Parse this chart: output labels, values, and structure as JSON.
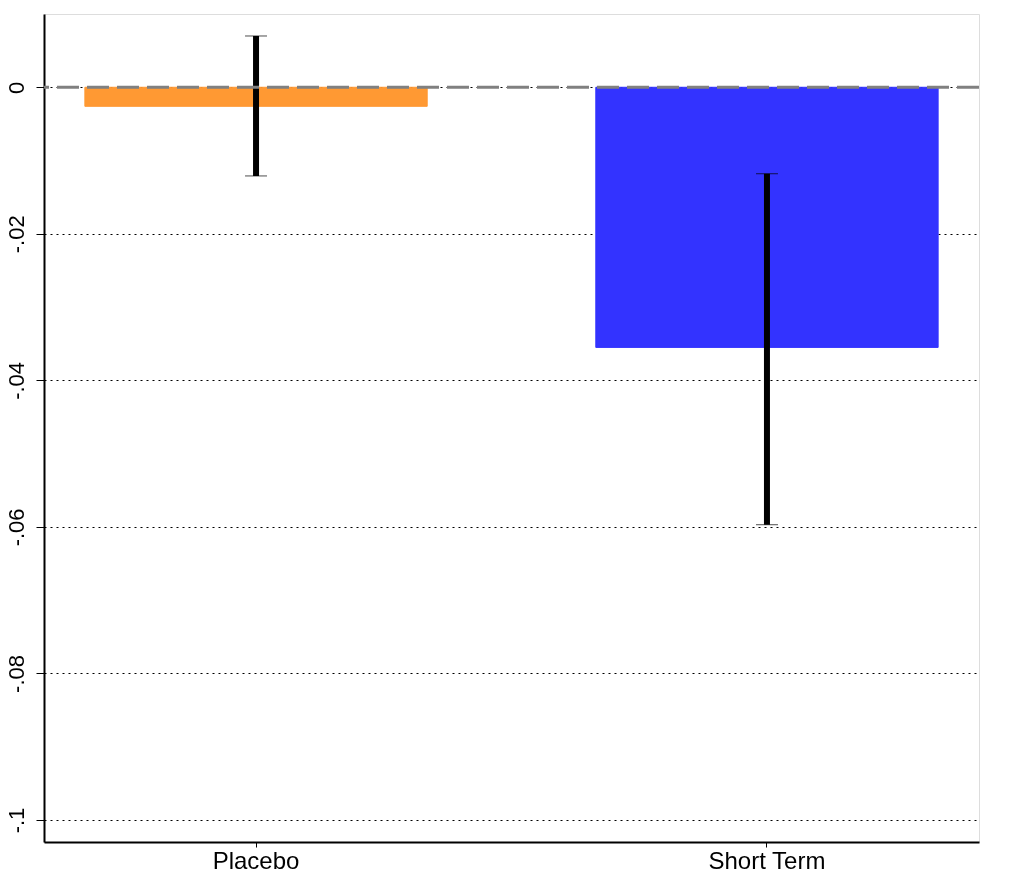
{
  "chart_data": {
    "type": "bar",
    "categories": [
      "Placebo",
      "Short Term"
    ],
    "values": [
      -0.0026,
      -0.0355
    ],
    "colors": [
      "#ff9933",
      "#3333ff"
    ],
    "errors": [
      [
        -0.0121,
        0.007
      ],
      [
        -0.0597,
        -0.0118
      ]
    ],
    "ylim": [
      -0.103,
      0.01
    ],
    "yticks": [
      0,
      {
        "value": -0.02,
        "label": "-.02"
      },
      {
        "value": -0.04,
        "label": "-.04"
      },
      {
        "value": -0.06,
        "label": "-.06"
      },
      {
        "value": -0.08,
        "label": "-.08"
      },
      {
        "value": -0.1,
        "label": "-.1"
      }
    ],
    "ref_lines": [
      {
        "axis": "y",
        "value": 0,
        "label": null,
        "color": "#808080",
        "line_style": "dashed"
      }
    ],
    "grid": "y"
  }
}
